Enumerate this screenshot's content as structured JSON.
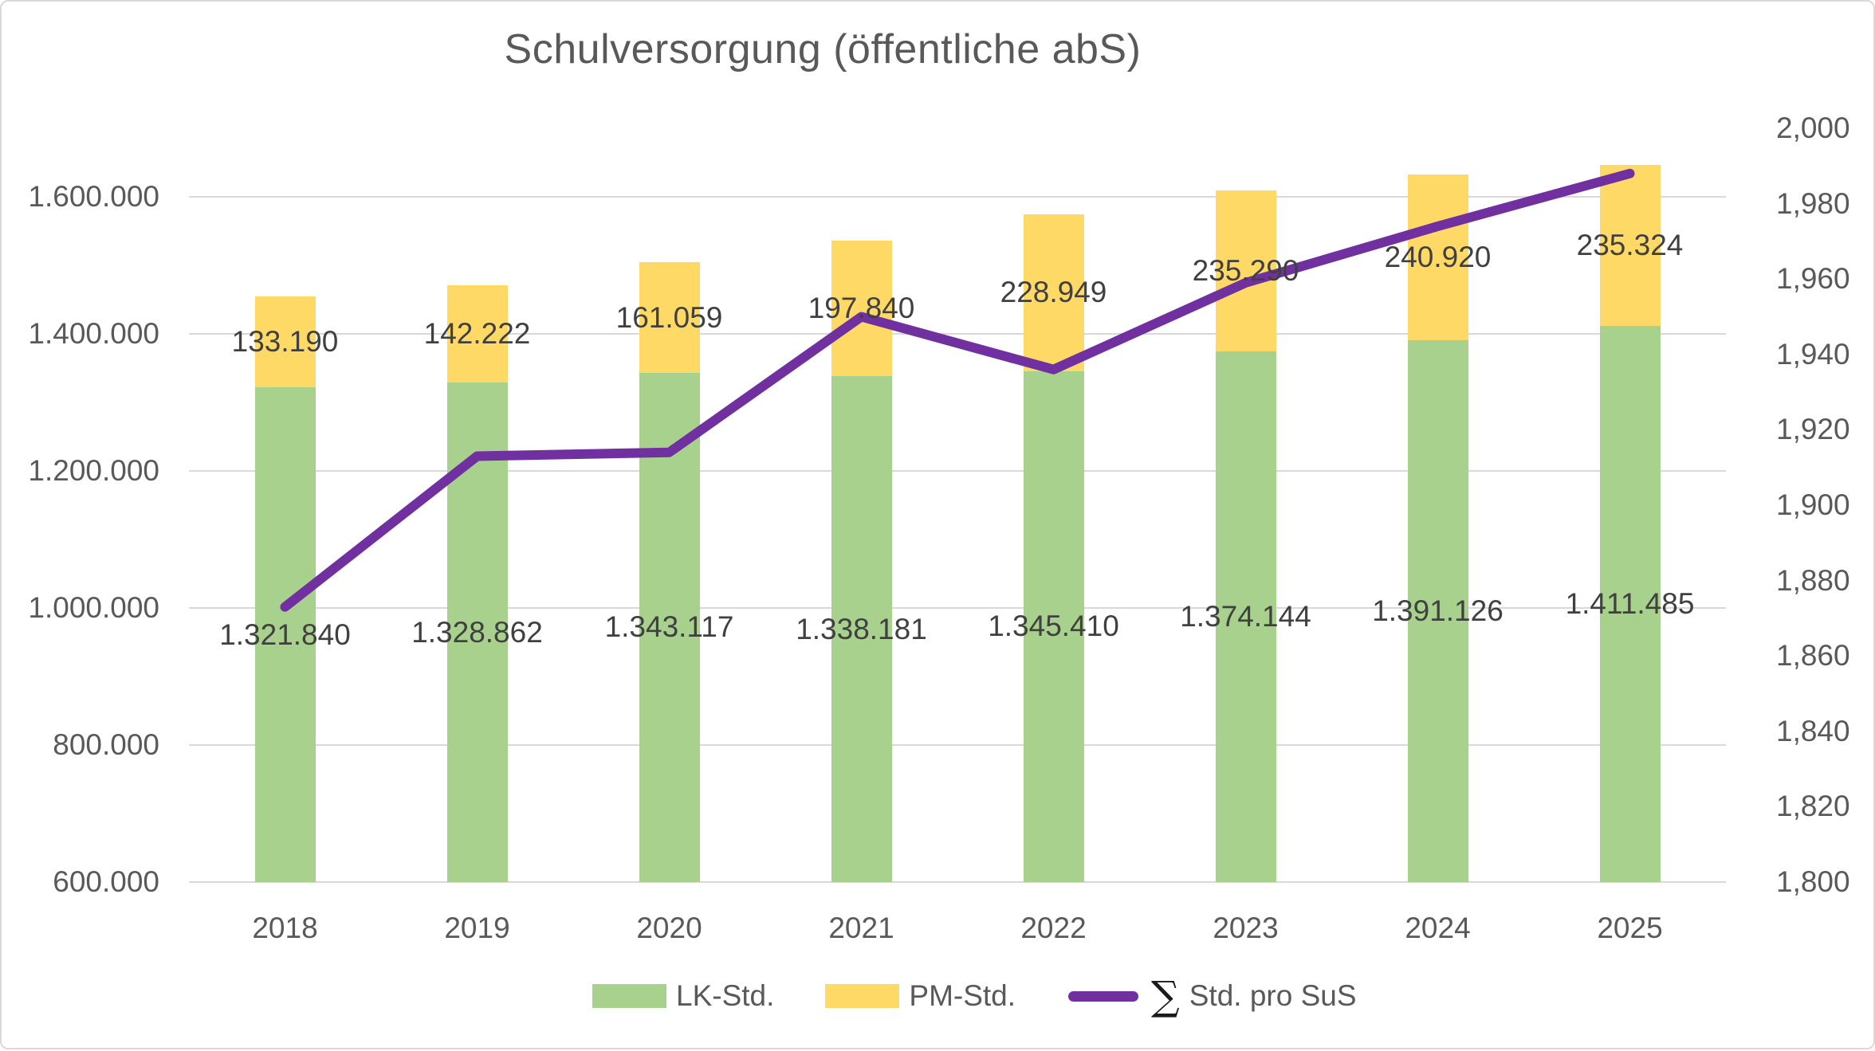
{
  "chart_data": {
    "type": "combo-stacked-bar-line",
    "title": "Schulversorgung (öffentliche abS)",
    "categories": [
      "2018",
      "2019",
      "2020",
      "2021",
      "2022",
      "2023",
      "2024",
      "2025"
    ],
    "series": [
      {
        "name": "LK-Std.",
        "chart_type": "stacked-bar",
        "axis": "left",
        "color": "#A9D18E",
        "values": [
          1321840,
          1328862,
          1343117,
          1338181,
          1345410,
          1374144,
          1391126,
          1411485
        ],
        "data_labels": [
          "1.321.840",
          "1.328.862",
          "1.343.117",
          "1.338.181",
          "1.345.410",
          "1.374.144",
          "1.391.126",
          "1.411.485"
        ]
      },
      {
        "name": "PM-Std.",
        "chart_type": "stacked-bar",
        "axis": "left",
        "color": "#FFD966",
        "values": [
          133190,
          142222,
          161059,
          197840,
          228949,
          235290,
          240920,
          235324
        ],
        "data_labels": [
          "133.190",
          "142.222",
          "161.059",
          "197.840",
          "228.949",
          "235.290",
          "240.920",
          "235.324"
        ]
      },
      {
        "name": "∑ Std. pro SuS",
        "chart_type": "line",
        "axis": "right",
        "color": "#7030A0",
        "values": [
          1873,
          1913,
          1914,
          1950,
          1936,
          1959,
          1974,
          1988
        ],
        "note": "line has no data labels; values estimated from right axis gridlines"
      }
    ],
    "left_axis": {
      "min": 600000,
      "max": 1700000,
      "major_unit": 200000,
      "tick_values": [
        600000,
        800000,
        1000000,
        1200000,
        1400000,
        1600000
      ],
      "tick_labels": [
        "600.000",
        "800.000",
        "1.000.000",
        "1.200.000",
        "1.400.000",
        "1.600.000"
      ]
    },
    "right_axis": {
      "min": 1800,
      "max": 2000,
      "label_step": 20,
      "tick_values": [
        1800,
        1820,
        1840,
        1860,
        1880,
        1900,
        1920,
        1940,
        1960,
        1980,
        2000
      ],
      "tick_labels": [
        "1,800",
        "1,820",
        "1,840",
        "1,860",
        "1,880",
        "1,900",
        "1,920",
        "1,940",
        "1,960",
        "1,980",
        "2,000"
      ]
    },
    "grid": "horizontal",
    "legend": {
      "position": "bottom",
      "entries": [
        {
          "label": "LK-Std.",
          "swatch": "bar"
        },
        {
          "label": "PM-Std.",
          "swatch": "bar"
        },
        {
          "sigma": "∑",
          "label": "Std. pro SuS",
          "swatch": "line"
        }
      ]
    },
    "colors": {
      "gridline": "#D9D9D9",
      "axis_text": "#595959",
      "data_label_text": "#404040",
      "title_text": "#595959",
      "border": "#D9D9D9",
      "background": "#FFFFFF"
    }
  }
}
